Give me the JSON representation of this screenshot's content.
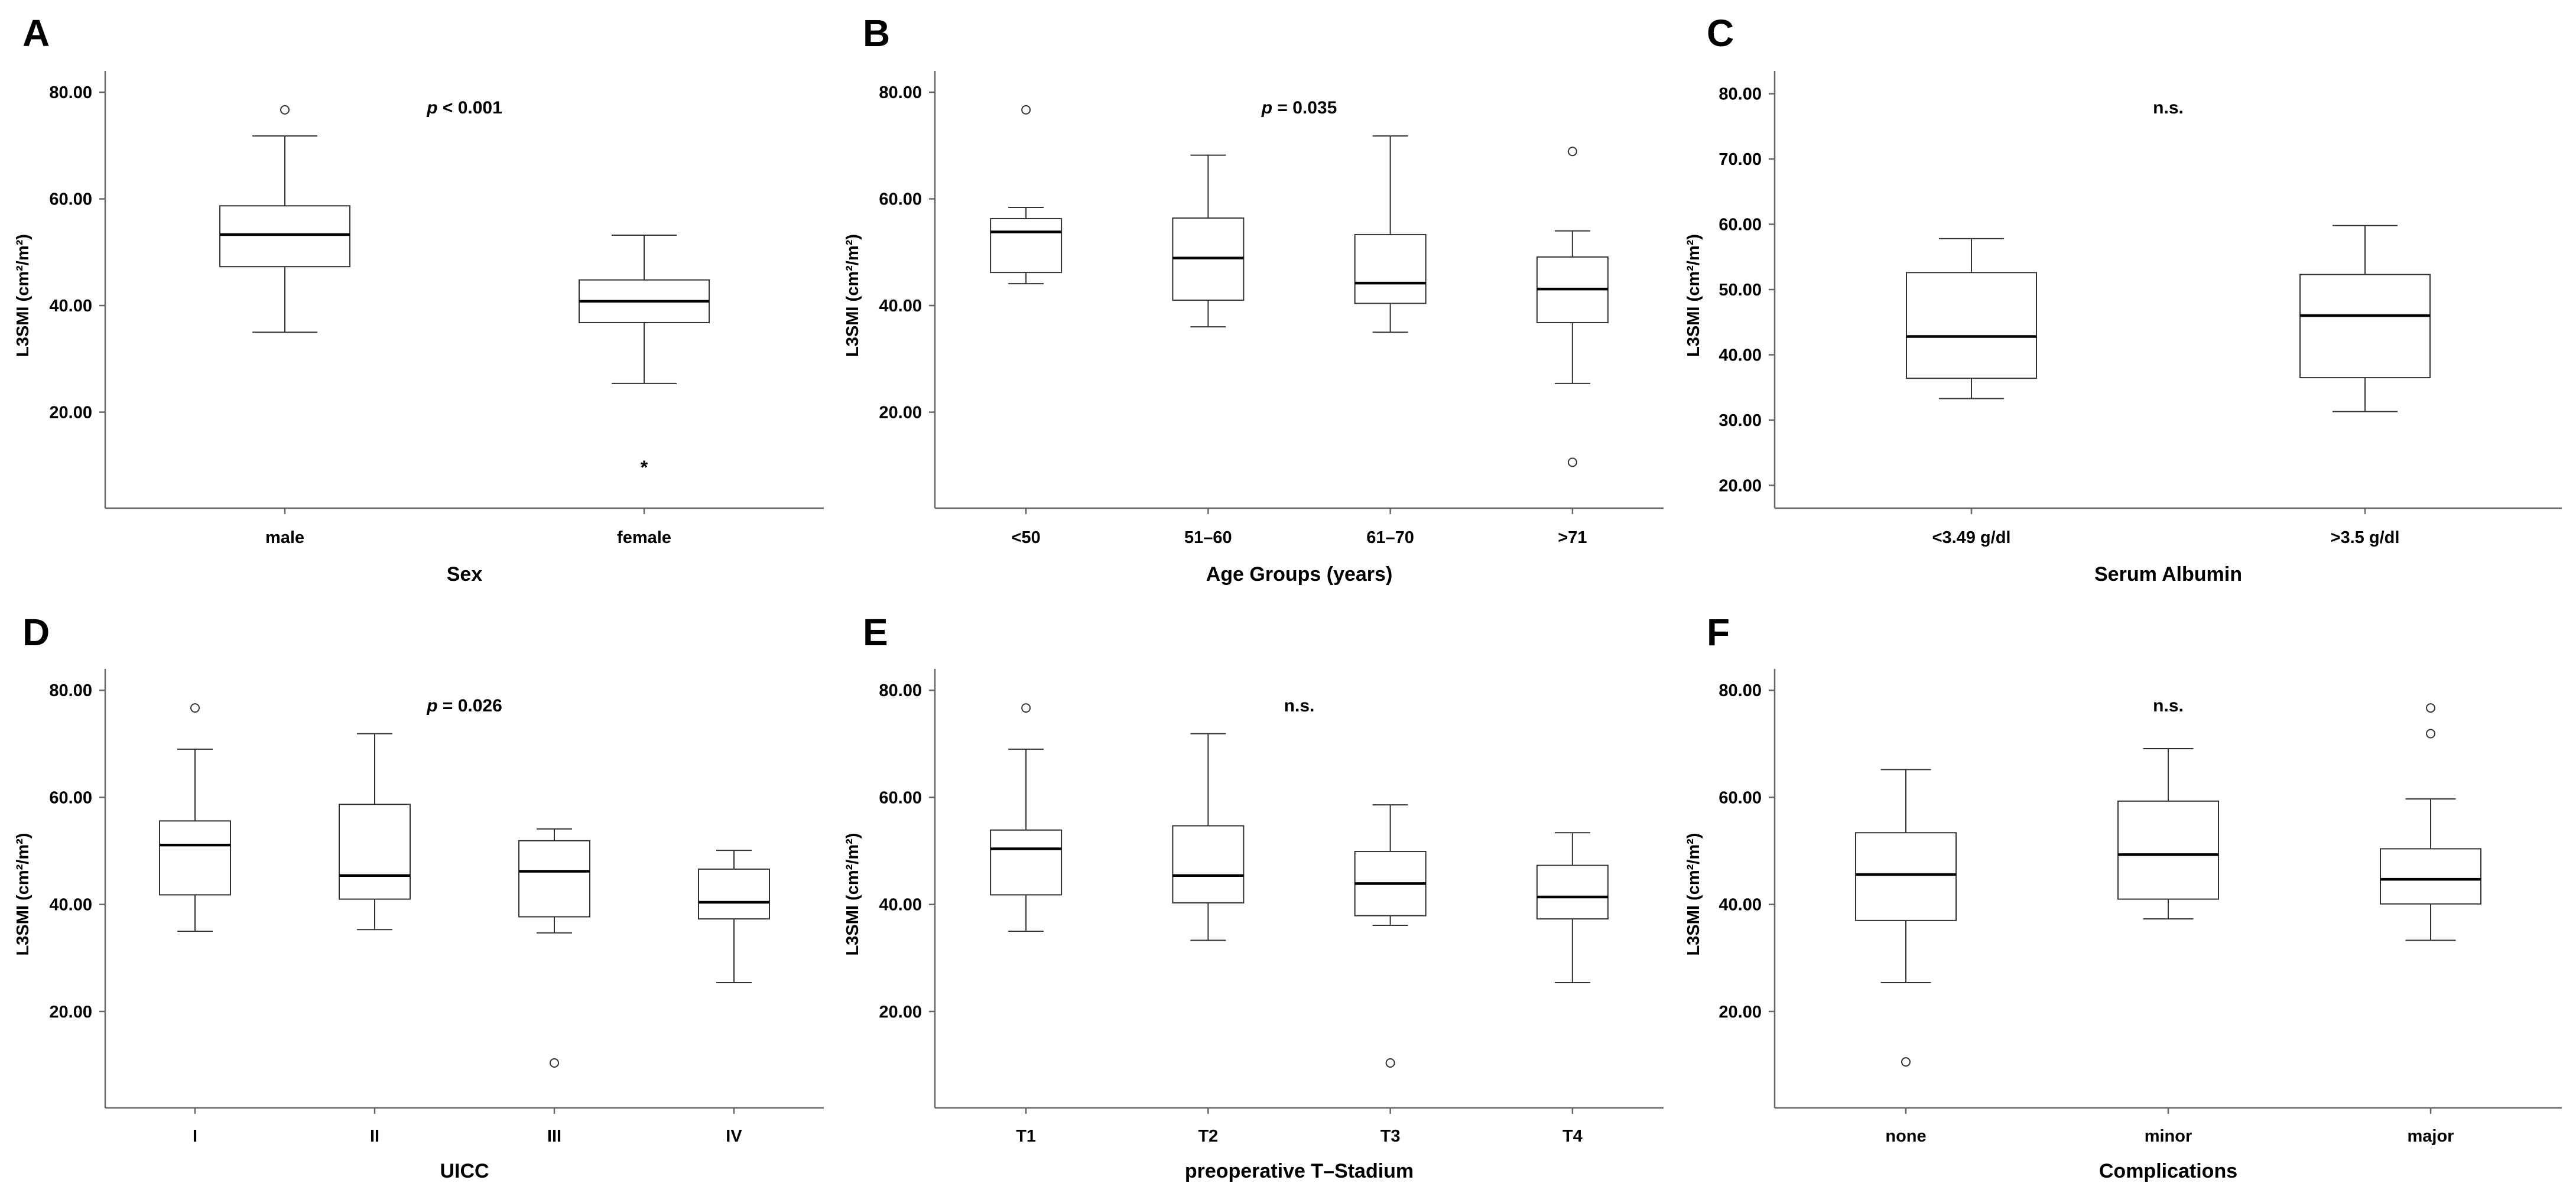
{
  "chart_data": [
    {
      "panel": "A",
      "type": "box",
      "xlabel": "Sex",
      "ylabel": "L3SMI (cm²/m²)",
      "ylim": [
        2,
        84
      ],
      "yticks": [
        "20.00",
        "40.00",
        "60.00",
        "80.00"
      ],
      "ytick_values": [
        20,
        40,
        60,
        80
      ],
      "annotation": {
        "p_symbol": "p",
        "text": " < 0.001"
      },
      "categories": [
        "male",
        "female"
      ],
      "boxes": [
        {
          "label": "male",
          "whisker_low": 35,
          "q1": 47.3,
          "median": 53.3,
          "q3": 58.7,
          "whisker_high": 71.8,
          "outliers": [
            {
              "value": 76.7,
              "marker": "circle"
            }
          ]
        },
        {
          "label": "female",
          "whisker_low": 25.4,
          "q1": 36.8,
          "median": 40.8,
          "q3": 44.8,
          "whisker_high": 53.2,
          "outliers": [
            {
              "value": 10.4,
              "marker": "star"
            }
          ]
        }
      ]
    },
    {
      "panel": "B",
      "type": "box",
      "xlabel": "Age Groups (years)",
      "ylabel": "L3SMI (cm²/m²)",
      "ylim": [
        2,
        84
      ],
      "yticks": [
        "20.00",
        "40.00",
        "60.00",
        "80.00"
      ],
      "ytick_values": [
        20,
        40,
        60,
        80
      ],
      "annotation": {
        "p_symbol": "p",
        "text": " = 0.035"
      },
      "categories": [
        "<50",
        "51–60",
        "61–70",
        ">71"
      ],
      "boxes": [
        {
          "label": "<50",
          "whisker_low": 44.1,
          "q1": 46.2,
          "median": 53.8,
          "q3": 56.3,
          "whisker_high": 58.4,
          "outliers": [
            {
              "value": 76.7,
              "marker": "circle"
            }
          ]
        },
        {
          "label": "51–60",
          "whisker_low": 36.0,
          "q1": 41.0,
          "median": 48.9,
          "q3": 56.4,
          "whisker_high": 68.2,
          "outliers": []
        },
        {
          "label": "61–70",
          "whisker_low": 35.0,
          "q1": 40.4,
          "median": 44.2,
          "q3": 53.3,
          "whisker_high": 71.8,
          "outliers": []
        },
        {
          "label": ">71",
          "whisker_low": 25.4,
          "q1": 36.8,
          "median": 43.1,
          "q3": 49.1,
          "whisker_high": 54.0,
          "outliers": [
            {
              "value": 68.9,
              "marker": "circle"
            },
            {
              "value": 10.6,
              "marker": "circle"
            }
          ]
        }
      ]
    },
    {
      "panel": "C",
      "type": "box",
      "xlabel": "Serum Albumin",
      "ylabel": "L3SMI (cm²/m²)",
      "ylim": [
        16.5,
        83.5
      ],
      "yticks": [
        "20.00",
        "30.00",
        "40.00",
        "50.00",
        "60.00",
        "70.00",
        "80.00"
      ],
      "ytick_values": [
        20,
        30,
        40,
        50,
        60,
        70,
        80
      ],
      "annotation": {
        "p_symbol": "",
        "text": "n.s."
      },
      "categories": [
        "<3.49 g/dl",
        ">3.5 g/dl"
      ],
      "boxes": [
        {
          "label": "<3.49 g/dl",
          "whisker_low": 33.3,
          "q1": 36.4,
          "median": 42.8,
          "q3": 52.6,
          "whisker_high": 57.8,
          "outliers": []
        },
        {
          "label": ">3.5 g/dl",
          "whisker_low": 31.3,
          "q1": 36.5,
          "median": 46.0,
          "q3": 52.3,
          "whisker_high": 59.8,
          "outliers": []
        }
      ]
    },
    {
      "panel": "D",
      "type": "box",
      "xlabel": "UICC",
      "ylabel": "L3SMI (cm²/m²)",
      "ylim": [
        2,
        84
      ],
      "yticks": [
        "20.00",
        "40.00",
        "60.00",
        "80.00"
      ],
      "ytick_values": [
        20,
        40,
        60,
        80
      ],
      "annotation": {
        "p_symbol": "p",
        "text": " = 0.026"
      },
      "categories": [
        "I",
        "II",
        "III",
        "IV"
      ],
      "boxes": [
        {
          "label": "I",
          "whisker_low": 35.0,
          "q1": 41.8,
          "median": 51.1,
          "q3": 55.6,
          "whisker_high": 69.0,
          "outliers": [
            {
              "value": 76.7,
              "marker": "circle"
            }
          ]
        },
        {
          "label": "II",
          "whisker_low": 35.3,
          "q1": 41.0,
          "median": 45.4,
          "q3": 58.7,
          "whisker_high": 71.9,
          "outliers": []
        },
        {
          "label": "III",
          "whisker_low": 34.7,
          "q1": 37.7,
          "median": 46.2,
          "q3": 51.9,
          "whisker_high": 54.1,
          "outliers": [
            {
              "value": 10.4,
              "marker": "circle"
            }
          ]
        },
        {
          "label": "IV",
          "whisker_low": 25.4,
          "q1": 37.3,
          "median": 40.4,
          "q3": 46.6,
          "whisker_high": 50.1,
          "outliers": []
        }
      ]
    },
    {
      "panel": "E",
      "type": "box",
      "xlabel": "preoperative T–Stadium",
      "ylabel": "L3SMI (cm²/m²)",
      "ylim": [
        2,
        84
      ],
      "yticks": [
        "20.00",
        "40.00",
        "60.00",
        "80.00"
      ],
      "ytick_values": [
        20,
        40,
        60,
        80
      ],
      "annotation": {
        "p_symbol": "",
        "text": "n.s."
      },
      "categories": [
        "T1",
        "T2",
        "T3",
        "T4"
      ],
      "boxes": [
        {
          "label": "T1",
          "whisker_low": 35.0,
          "q1": 41.8,
          "median": 50.4,
          "q3": 53.9,
          "whisker_high": 69.0,
          "outliers": [
            {
              "value": 76.7,
              "marker": "circle"
            }
          ]
        },
        {
          "label": "T2",
          "whisker_low": 33.3,
          "q1": 40.3,
          "median": 45.4,
          "q3": 54.7,
          "whisker_high": 71.9,
          "outliers": []
        },
        {
          "label": "T3",
          "whisker_low": 36.1,
          "q1": 37.9,
          "median": 43.9,
          "q3": 49.9,
          "whisker_high": 58.6,
          "outliers": [
            {
              "value": 10.4,
              "marker": "circle"
            }
          ]
        },
        {
          "label": "T4",
          "whisker_low": 25.4,
          "q1": 37.3,
          "median": 41.4,
          "q3": 47.3,
          "whisker_high": 53.4,
          "outliers": []
        }
      ]
    },
    {
      "panel": "F",
      "type": "box",
      "xlabel": "Complications",
      "ylabel": "L3SMI (cm²/m²)",
      "ylim": [
        2,
        84
      ],
      "yticks": [
        "20.00",
        "40.00",
        "60.00",
        "80.00"
      ],
      "ytick_values": [
        20,
        40,
        60,
        80
      ],
      "annotation": {
        "p_symbol": "",
        "text": "n.s."
      },
      "categories": [
        "none",
        "minor",
        "major"
      ],
      "boxes": [
        {
          "label": "none",
          "whisker_low": 25.4,
          "q1": 37.0,
          "median": 45.6,
          "q3": 53.4,
          "whisker_high": 65.2,
          "outliers": [
            {
              "value": 10.6,
              "marker": "circle"
            }
          ]
        },
        {
          "label": "minor",
          "whisker_low": 37.3,
          "q1": 41.0,
          "median": 49.3,
          "q3": 59.3,
          "whisker_high": 69.1,
          "outliers": []
        },
        {
          "label": "major",
          "whisker_low": 33.3,
          "q1": 40.1,
          "median": 44.7,
          "q3": 50.4,
          "whisker_high": 59.7,
          "outliers": [
            {
              "value": 76.7,
              "marker": "circle"
            },
            {
              "value": 71.9,
              "marker": "circle"
            }
          ]
        }
      ]
    }
  ]
}
